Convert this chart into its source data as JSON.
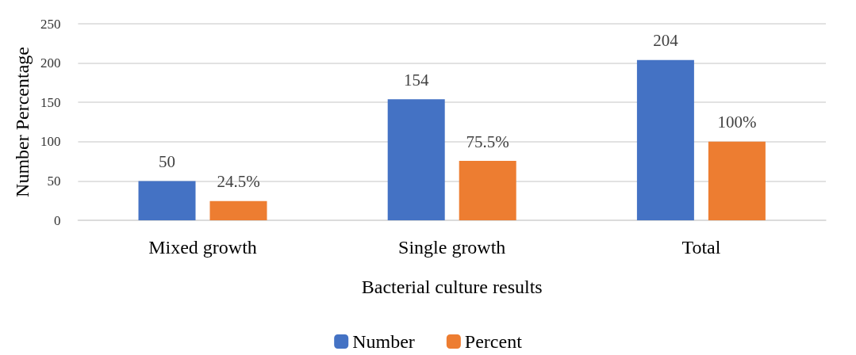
{
  "chart_data": {
    "type": "bar",
    "xlabel": "Bacterial culture results",
    "ylabel": "Number Percentage",
    "categories": [
      "Mixed growth",
      "Single growth",
      "Total"
    ],
    "series": [
      {
        "name": "Number",
        "color": "#4472c4",
        "values": [
          50,
          154,
          204
        ],
        "value_labels": [
          "50",
          "154",
          "204"
        ]
      },
      {
        "name": "Percent",
        "color": "#ed7d31",
        "values": [
          24.5,
          75.5,
          100
        ],
        "value_labels": [
          "24.5%",
          "75.5%",
          "100%"
        ]
      }
    ],
    "ylim": [
      0,
      250
    ],
    "yticks": [
      0,
      50,
      100,
      150,
      200,
      250
    ],
    "grid": "y",
    "legend": "bottom"
  }
}
